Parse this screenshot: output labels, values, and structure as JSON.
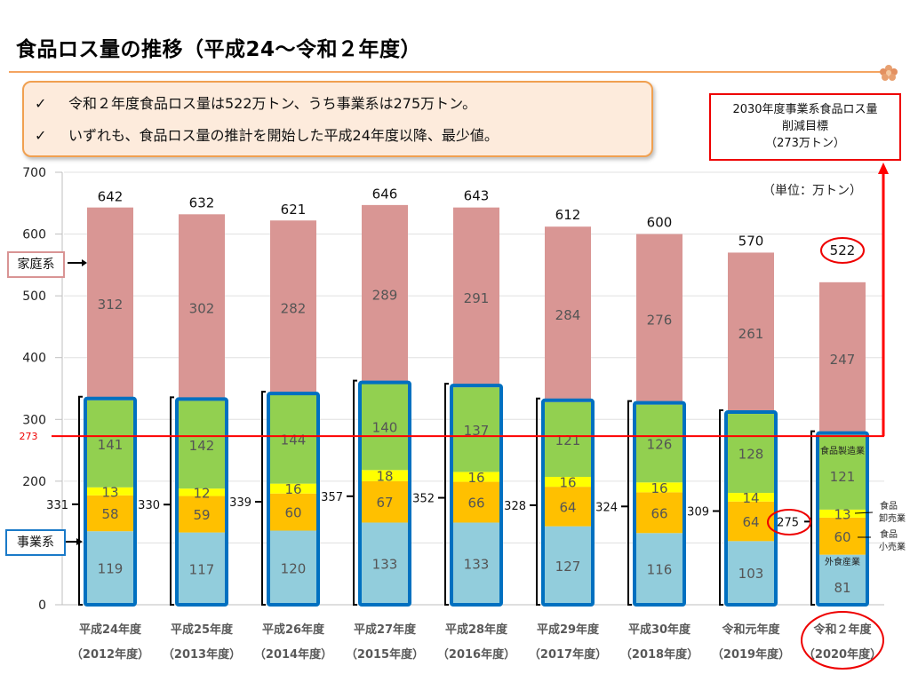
{
  "title": "食品ロス量の推移（平成24～令和２年度）",
  "callout": {
    "check_icon": "✓",
    "lines": [
      "令和２年度食品ロス量は522万トン、うち事業系は275万トン。",
      "いずれも、食品ロス量の推計を開始した平成24年度以降、最少値。"
    ]
  },
  "target_box": {
    "line1": "2030年度事業系食品ロス量",
    "line2": "削減目標",
    "line3": "（273万トン）"
  },
  "unit_label": "（単位：万トン）",
  "side_labels": {
    "household": "家庭系",
    "business": "事業系"
  },
  "segment_labels": {
    "manufacturing": "食品製造業",
    "wholesale": "食品\n卸売業",
    "retail": "食品\n小売業",
    "foodservice": "外食産業"
  },
  "colors": {
    "household": "#d99694",
    "manufacturing": "#92d050",
    "wholesale": "#ffff00",
    "retail": "#ffc000",
    "foodservice": "#92cddc",
    "business_outline": "#0070c0",
    "target_line": "#ff0000",
    "title_rule": "#f4a460"
  },
  "chart_data": {
    "type": "bar",
    "stacked": true,
    "title": "食品ロス量の推移（平成24～令和２年度）",
    "ylabel": "万トン",
    "ylim": [
      0,
      700
    ],
    "yticks": [
      0,
      100,
      200,
      300,
      400,
      500,
      600,
      700
    ],
    "grid": true,
    "categories": [
      "平成24年度",
      "平成25年度",
      "平成26年度",
      "平成27年度",
      "平成28年度",
      "平成29年度",
      "平成30年度",
      "令和元年度",
      "令和２年度"
    ],
    "categories_sub": [
      "（2012年度）",
      "（2013年度）",
      "（2014年度）",
      "（2015年度）",
      "（2016年度）",
      "（2017年度）",
      "（2018年度）",
      "（2019年度）",
      "（2020年度）"
    ],
    "series": [
      {
        "name": "外食産業",
        "key": "foodservice",
        "values": [
          119,
          117,
          120,
          133,
          133,
          127,
          116,
          103,
          81
        ]
      },
      {
        "name": "食品小売業",
        "key": "retail",
        "values": [
          58,
          59,
          60,
          67,
          66,
          64,
          66,
          64,
          60
        ]
      },
      {
        "name": "食品卸売業",
        "key": "wholesale",
        "values": [
          13,
          12,
          16,
          18,
          16,
          16,
          16,
          14,
          13
        ]
      },
      {
        "name": "食品製造業",
        "key": "manufacturing",
        "values": [
          141,
          142,
          144,
          140,
          137,
          121,
          126,
          128,
          121
        ]
      },
      {
        "name": "家庭系",
        "key": "household",
        "values": [
          312,
          302,
          282,
          289,
          291,
          284,
          276,
          261,
          247
        ]
      }
    ],
    "business_totals": [
      331,
      330,
      339,
      357,
      352,
      328,
      324,
      309,
      275
    ],
    "totals": [
      642,
      632,
      621,
      646,
      643,
      612,
      600,
      570,
      522
    ],
    "reference_line": {
      "value": 273,
      "label": "273",
      "name": "2030年度事業系食品ロス量削減目標"
    },
    "highlighted_category": "令和２年度"
  }
}
